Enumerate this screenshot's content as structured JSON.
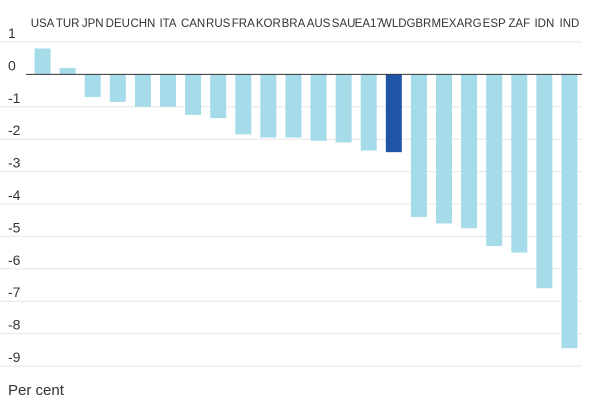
{
  "chart_data": {
    "type": "bar",
    "categories": [
      "USA",
      "TUR",
      "JPN",
      "DEU",
      "CHN",
      "ITA",
      "CAN",
      "RUS",
      "FRA",
      "KOR",
      "BRA",
      "AUS",
      "SAU",
      "EA17",
      "WLD",
      "GBR",
      "MEX",
      "ARG",
      "ESP",
      "ZAF",
      "IDN",
      "IND"
    ],
    "values": [
      0.8,
      0.2,
      -0.7,
      -0.85,
      -1.0,
      -1.0,
      -1.25,
      -1.35,
      -1.85,
      -1.95,
      -1.95,
      -2.05,
      -2.1,
      -2.35,
      -2.4,
      -4.4,
      -4.6,
      -4.75,
      -5.3,
      -5.5,
      -6.6,
      -8.45
    ],
    "highlight": "WLD",
    "yticks": [
      1,
      0,
      -1,
      -2,
      -3,
      -4,
      -5,
      -6,
      -7,
      -8,
      -9
    ],
    "ylim": [
      -9,
      1
    ],
    "ylabel": "Per cent",
    "title": "",
    "xlabel": "",
    "grid": true,
    "colors": {
      "bar": "#a6dbea",
      "highlight": "#1f55a6",
      "grid": "#e6e6e6",
      "zero_line": "#333333"
    }
  }
}
